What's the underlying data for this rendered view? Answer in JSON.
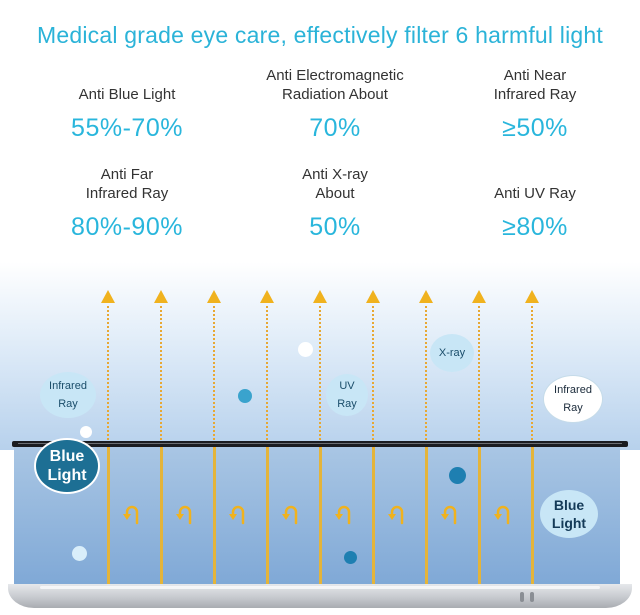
{
  "headline": "Medical grade eye care, effectively filter 6 harmful light",
  "stats": [
    {
      "label": "Anti Blue Light",
      "value": "55%-70%"
    },
    {
      "label": "Anti Electromagnetic\nRadiation About",
      "value": "70%"
    },
    {
      "label": "Anti Near\nInfrared Ray",
      "value": "≥50%"
    },
    {
      "label": "Anti Far\nInfrared Ray",
      "value": "80%-90%"
    },
    {
      "label": "Anti X-ray\nAbout",
      "value": "50%"
    },
    {
      "label": "Anti UV Ray",
      "value": "≥80%"
    }
  ],
  "bubbles": {
    "infrared_left": "Infrared\nRay",
    "uv": "UV\nRay",
    "xray": "X-ray",
    "infrared_right": "Infrared\nRay",
    "blue_light_left": "Blue\nLight",
    "blue_light_right": "Blue\nLight"
  },
  "colors": {
    "headline": "#2bb3d8",
    "value": "#29b6dc",
    "arrow": "#f0b21e",
    "glass": "#1a1c20"
  }
}
